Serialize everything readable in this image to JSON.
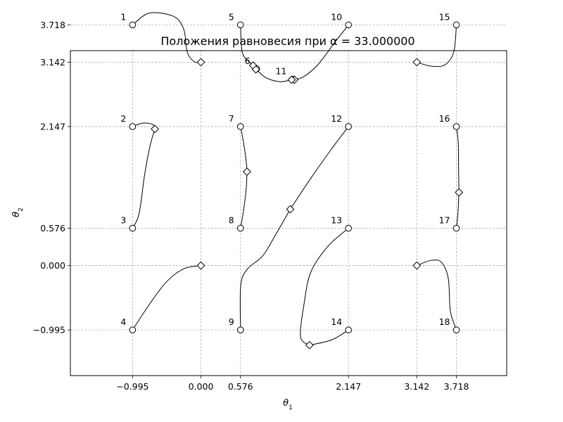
{
  "chart_data": {
    "type": "scatter",
    "title": "Положения равновесия при α = 33.000000",
    "xlabel": "θ1",
    "ylabel": "θ2",
    "xlim": [
      -1.9,
      4.45
    ],
    "ylim": [
      -1.7,
      3.32
    ],
    "grid": true,
    "xticks": [
      {
        "value": -0.995,
        "label": "−0.995"
      },
      {
        "value": 0.0,
        "label": "0.000"
      },
      {
        "value": 0.576,
        "label": "0.576"
      },
      {
        "value": 2.147,
        "label": "2.147"
      },
      {
        "value": 3.142,
        "label": "3.142"
      },
      {
        "value": 3.718,
        "label": "3.718"
      }
    ],
    "yticks": [
      {
        "value": 3.718,
        "label": "3.718"
      },
      {
        "value": 3.142,
        "label": "3.142"
      },
      {
        "value": 2.147,
        "label": "2.147"
      },
      {
        "value": 0.576,
        "label": "0.576"
      },
      {
        "value": 0.0,
        "label": "0.000"
      },
      {
        "value": -0.995,
        "label": "−0.995"
      }
    ],
    "start_points": [
      {
        "label": "1",
        "x": -0.995,
        "y": 3.718
      },
      {
        "label": "2",
        "x": -0.995,
        "y": 2.147
      },
      {
        "label": "3",
        "x": -0.995,
        "y": 0.576
      },
      {
        "label": "4",
        "x": -0.995,
        "y": -0.995
      },
      {
        "label": "5",
        "x": 0.576,
        "y": 3.718
      },
      {
        "label": "6",
        "x": 0.81,
        "y": 3.04
      },
      {
        "label": "7",
        "x": 0.576,
        "y": 2.147
      },
      {
        "label": "8",
        "x": 0.576,
        "y": 0.576
      },
      {
        "label": "9",
        "x": 0.576,
        "y": -0.995
      },
      {
        "label": "10",
        "x": 2.147,
        "y": 3.718
      },
      {
        "label": "11",
        "x": 1.34,
        "y": 2.88
      },
      {
        "label": "12",
        "x": 2.147,
        "y": 2.147
      },
      {
        "label": "13",
        "x": 2.147,
        "y": 0.576
      },
      {
        "label": "14",
        "x": 2.147,
        "y": -0.995
      },
      {
        "label": "15",
        "x": 3.718,
        "y": 3.718
      },
      {
        "label": "16",
        "x": 3.718,
        "y": 2.147
      },
      {
        "label": "17",
        "x": 3.718,
        "y": 0.576
      },
      {
        "label": "18",
        "x": 3.718,
        "y": -0.995
      }
    ],
    "end_points": [
      {
        "x": 0.0,
        "y": 3.142
      },
      {
        "x": -0.67,
        "y": 2.11
      },
      {
        "x": 0.0,
        "y": 0.0
      },
      {
        "x": 0.76,
        "y": 3.09
      },
      {
        "x": 0.8,
        "y": 3.03
      },
      {
        "x": 1.36,
        "y": 2.87
      },
      {
        "x": 1.32,
        "y": 2.87
      },
      {
        "x": 0.67,
        "y": 1.45
      },
      {
        "x": 1.3,
        "y": 0.87
      },
      {
        "x": 1.58,
        "y": -1.23
      },
      {
        "x": 3.142,
        "y": 3.142
      },
      {
        "x": 3.755,
        "y": 1.13
      },
      {
        "x": 3.142,
        "y": 0.0
      }
    ],
    "trajectories": [
      {
        "points": [
          [
            -0.995,
            3.718
          ],
          [
            -0.75,
            3.9
          ],
          [
            -0.4,
            3.85
          ],
          [
            -0.25,
            3.65
          ],
          [
            -0.2,
            3.3
          ],
          [
            -0.1,
            3.15
          ],
          [
            0.0,
            3.142
          ]
        ]
      },
      {
        "points": [
          [
            -0.995,
            2.147
          ],
          [
            -0.85,
            2.2
          ],
          [
            -0.7,
            2.18
          ],
          [
            -0.67,
            2.11
          ]
        ]
      },
      {
        "points": [
          [
            -0.995,
            0.576
          ],
          [
            -0.9,
            0.8
          ],
          [
            -0.82,
            1.4
          ],
          [
            -0.74,
            1.85
          ],
          [
            -0.67,
            2.11
          ]
        ]
      },
      {
        "points": [
          [
            -0.995,
            -0.995
          ],
          [
            -0.75,
            -0.6
          ],
          [
            -0.5,
            -0.25
          ],
          [
            -0.25,
            -0.05
          ],
          [
            0.0,
            0.0
          ]
        ]
      },
      {
        "points": [
          [
            0.576,
            3.718
          ],
          [
            0.6,
            3.3
          ],
          [
            0.7,
            3.15
          ],
          [
            0.76,
            3.09
          ]
        ]
      },
      {
        "points": [
          [
            0.8,
            3.03
          ],
          [
            0.95,
            2.9
          ],
          [
            1.15,
            2.84
          ],
          [
            1.32,
            2.87
          ]
        ]
      },
      {
        "points": [
          [
            2.147,
            3.718
          ],
          [
            1.95,
            3.45
          ],
          [
            1.7,
            3.1
          ],
          [
            1.5,
            2.92
          ],
          [
            1.36,
            2.87
          ]
        ]
      },
      {
        "points": [
          [
            0.576,
            2.147
          ],
          [
            0.62,
            1.9
          ],
          [
            0.66,
            1.6
          ],
          [
            0.67,
            1.45
          ]
        ]
      },
      {
        "points": [
          [
            0.576,
            0.576
          ],
          [
            0.62,
            0.85
          ],
          [
            0.66,
            1.2
          ],
          [
            0.67,
            1.45
          ]
        ]
      },
      {
        "points": [
          [
            0.576,
            -0.995
          ],
          [
            0.58,
            -0.3
          ],
          [
            0.68,
            -0.05
          ],
          [
            0.9,
            0.15
          ],
          [
            1.1,
            0.5
          ],
          [
            1.3,
            0.87
          ]
        ]
      },
      {
        "points": [
          [
            2.147,
            2.147
          ],
          [
            1.9,
            1.8
          ],
          [
            1.6,
            1.35
          ],
          [
            1.3,
            0.87
          ]
        ]
      },
      {
        "points": [
          [
            2.147,
            0.576
          ],
          [
            1.85,
            0.3
          ],
          [
            1.6,
            -0.1
          ],
          [
            1.5,
            -0.6
          ],
          [
            1.45,
            -1.1
          ],
          [
            1.58,
            -1.23
          ]
        ]
      },
      {
        "points": [
          [
            2.147,
            -0.995
          ],
          [
            1.9,
            -1.15
          ],
          [
            1.58,
            -1.23
          ]
        ]
      },
      {
        "points": [
          [
            3.718,
            3.718
          ],
          [
            3.68,
            3.3
          ],
          [
            3.55,
            3.1
          ],
          [
            3.35,
            3.08
          ],
          [
            3.142,
            3.142
          ]
        ]
      },
      {
        "points": [
          [
            3.718,
            2.147
          ],
          [
            3.745,
            1.9
          ],
          [
            3.75,
            1.5
          ],
          [
            3.755,
            1.13
          ]
        ]
      },
      {
        "points": [
          [
            3.718,
            0.576
          ],
          [
            3.74,
            0.8
          ],
          [
            3.755,
            1.13
          ]
        ]
      },
      {
        "points": [
          [
            3.718,
            -0.995
          ],
          [
            3.63,
            -0.7
          ],
          [
            3.6,
            -0.2
          ],
          [
            3.5,
            0.05
          ],
          [
            3.35,
            0.08
          ],
          [
            3.142,
            0.0
          ]
        ]
      }
    ]
  }
}
